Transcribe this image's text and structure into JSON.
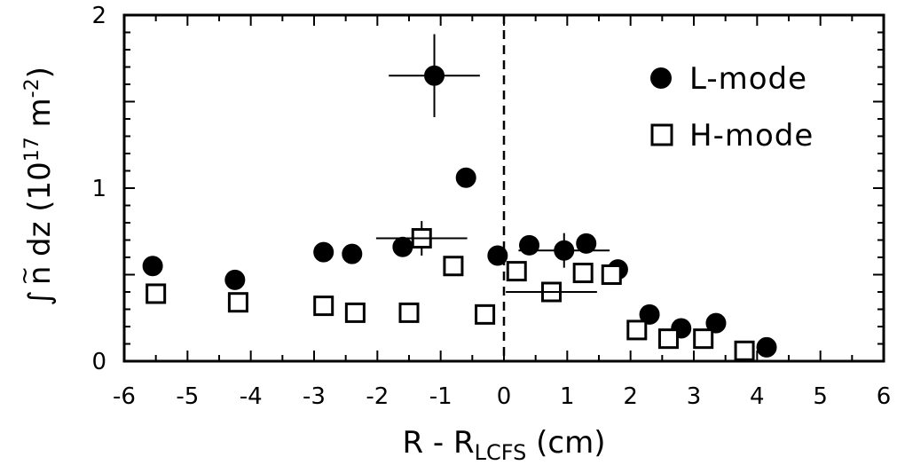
{
  "chart_data": {
    "type": "scatter",
    "title": "",
    "xlabel": {
      "main": "R - R",
      "subscript": "LCFS",
      "unit": " (cm)"
    },
    "ylabel": {
      "integral": "∫",
      "var": "n",
      "tilde": "~",
      "dz": " dz (10",
      "exp1": "17",
      "unit": " m",
      "exp2": "-2",
      "close": ")"
    },
    "xlim": [
      -6,
      6
    ],
    "ylim": [
      0,
      2
    ],
    "x_ticks": [
      -6,
      -5,
      -4,
      -3,
      -2,
      -1,
      0,
      1,
      2,
      3,
      4,
      5,
      6
    ],
    "x_tick_labels": [
      "-6",
      "-5",
      "-4",
      "-3",
      "-2",
      "-1",
      "0",
      "1",
      "2",
      "3",
      "4",
      "5",
      "6"
    ],
    "y_ticks": [
      0,
      1,
      2
    ],
    "y_tick_labels": [
      "0",
      "1",
      "2"
    ],
    "grid": false,
    "legend_position": "top-right",
    "reference_line": {
      "x": 0,
      "style": "dashed"
    },
    "series": [
      {
        "name": "L-mode",
        "marker": "filled-circle",
        "points": [
          {
            "x": -5.55,
            "y": 0.55
          },
          {
            "x": -4.25,
            "y": 0.47
          },
          {
            "x": -2.85,
            "y": 0.63
          },
          {
            "x": -2.4,
            "y": 0.62
          },
          {
            "x": -1.6,
            "y": 0.66
          },
          {
            "x": -1.1,
            "y": 1.65,
            "xerr": 0.72,
            "yerr": 0.24
          },
          {
            "x": -0.6,
            "y": 1.06
          },
          {
            "x": -0.1,
            "y": 0.61
          },
          {
            "x": 0.4,
            "y": 0.67
          },
          {
            "x": 0.95,
            "y": 0.64,
            "xerr": 0.72,
            "yerr": 0.1
          },
          {
            "x": 1.3,
            "y": 0.68
          },
          {
            "x": 1.8,
            "y": 0.53
          },
          {
            "x": 2.3,
            "y": 0.27
          },
          {
            "x": 2.8,
            "y": 0.19
          },
          {
            "x": 3.35,
            "y": 0.22
          },
          {
            "x": 4.15,
            "y": 0.08
          }
        ]
      },
      {
        "name": "H-mode",
        "marker": "open-square",
        "points": [
          {
            "x": -5.5,
            "y": 0.39
          },
          {
            "x": -4.2,
            "y": 0.34
          },
          {
            "x": -2.85,
            "y": 0.32
          },
          {
            "x": -2.35,
            "y": 0.28
          },
          {
            "x": -1.5,
            "y": 0.28
          },
          {
            "x": -1.3,
            "y": 0.71,
            "xerr": 0.72,
            "yerr": 0.1
          },
          {
            "x": -0.8,
            "y": 0.55
          },
          {
            "x": -0.3,
            "y": 0.27
          },
          {
            "x": 0.2,
            "y": 0.52
          },
          {
            "x": 0.75,
            "y": 0.4,
            "xerr": 0.72,
            "yerr": 0.04
          },
          {
            "x": 1.25,
            "y": 0.51
          },
          {
            "x": 1.7,
            "y": 0.5
          },
          {
            "x": 2.1,
            "y": 0.18
          },
          {
            "x": 2.6,
            "y": 0.13
          },
          {
            "x": 3.15,
            "y": 0.13
          },
          {
            "x": 3.8,
            "y": 0.06
          }
        ]
      }
    ]
  }
}
